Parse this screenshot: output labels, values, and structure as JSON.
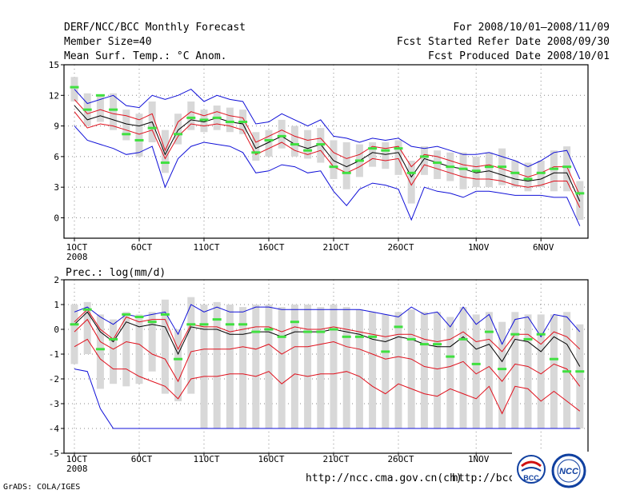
{
  "header": {
    "title": "DERF/NCC/BCC Monthly Forecast",
    "member": "Member Size=40",
    "variable": "Mean Surf. Temp.: °C Anom.",
    "period": "For 2008/10/01—2008/11/09",
    "started": "Fcst Started Refer Date 2008/09/30",
    "produced": "Fcst Produced Date 2008/10/01"
  },
  "footer": {
    "grads": "GrADS: COLA/IGES",
    "url1": "http://ncc.cma.gov.cn(ch)",
    "url2": "http://bcc.c",
    "logo1": "BCC",
    "logo2": "NCC"
  },
  "colors": {
    "mean": "#000000",
    "spread": "#e0101c",
    "extreme": "#1010d8",
    "box": "#d8d8d8",
    "marker": "#40e040"
  },
  "chart_data": [
    {
      "type": "line",
      "title": "Mean Surf. Temp.: °C Anom.",
      "x_tick_labels": [
        "1OCT",
        "6OCT",
        "11OCT",
        "16OCT",
        "21OCT",
        "26OCT",
        "1NOV",
        "6NOV"
      ],
      "x_tick_days": [
        1,
        6,
        11,
        16,
        21,
        26,
        32,
        37
      ],
      "x_sub_label": "2008",
      "ylim": [
        -2,
        15
      ],
      "y_ticks": [
        0,
        3,
        6,
        9,
        12,
        15
      ],
      "x": [
        1,
        2,
        3,
        4,
        5,
        6,
        7,
        8,
        9,
        10,
        11,
        12,
        13,
        14,
        15,
        16,
        17,
        18,
        19,
        20,
        21,
        22,
        23,
        24,
        25,
        26,
        27,
        28,
        29,
        30,
        31,
        32,
        33,
        34,
        35,
        36,
        37,
        38,
        39,
        40
      ],
      "series": [
        {
          "name": "max",
          "color": "#1010d8",
          "values": [
            12.6,
            11.2,
            11.6,
            12.0,
            11.0,
            10.8,
            12.0,
            11.6,
            12.0,
            12.6,
            11.4,
            12.0,
            11.6,
            11.4,
            9.2,
            9.4,
            10.2,
            9.6,
            9.0,
            9.6,
            8.0,
            7.8,
            7.4,
            7.8,
            7.6,
            7.8,
            7.0,
            6.8,
            7.0,
            6.6,
            6.2,
            6.2,
            6.4,
            6.0,
            5.6,
            5.0,
            5.6,
            6.4,
            6.6,
            3.8
          ]
        },
        {
          "name": "upper",
          "color": "#e0101c",
          "values": [
            11.6,
            10.2,
            10.6,
            10.2,
            10.0,
            9.6,
            10.2,
            6.6,
            9.4,
            10.4,
            10.0,
            10.4,
            10.0,
            9.8,
            7.4,
            8.0,
            8.6,
            8.0,
            7.6,
            7.8,
            6.4,
            5.8,
            6.2,
            7.0,
            6.8,
            7.0,
            5.0,
            6.2,
            6.0,
            5.6,
            5.2,
            5.0,
            5.2,
            4.8,
            4.4,
            4.0,
            4.4,
            5.0,
            5.0,
            2.2
          ]
        },
        {
          "name": "mean",
          "color": "#000000",
          "values": [
            11.0,
            9.6,
            10.0,
            9.6,
            9.2,
            9.0,
            9.4,
            6.2,
            8.6,
            9.6,
            9.4,
            9.8,
            9.4,
            9.2,
            6.8,
            7.4,
            8.0,
            7.2,
            6.8,
            7.2,
            5.6,
            5.0,
            5.6,
            6.4,
            6.2,
            6.4,
            4.0,
            5.8,
            5.4,
            5.0,
            4.8,
            4.4,
            4.6,
            4.2,
            3.8,
            3.6,
            3.8,
            4.4,
            4.4,
            1.6
          ]
        },
        {
          "name": "lower",
          "color": "#e0101c",
          "values": [
            10.4,
            8.8,
            9.2,
            9.0,
            8.6,
            8.2,
            8.6,
            5.8,
            8.0,
            9.2,
            9.0,
            9.2,
            9.0,
            8.6,
            6.2,
            6.8,
            7.4,
            6.6,
            6.2,
            6.6,
            5.0,
            4.4,
            5.0,
            5.8,
            5.6,
            5.8,
            3.2,
            5.2,
            4.8,
            4.4,
            4.0,
            3.8,
            3.8,
            3.6,
            3.2,
            3.0,
            3.2,
            3.6,
            3.6,
            1.0
          ]
        },
        {
          "name": "min",
          "color": "#1010d8",
          "values": [
            9.0,
            7.6,
            7.2,
            6.8,
            6.2,
            6.4,
            7.0,
            3.0,
            5.8,
            7.0,
            7.4,
            7.2,
            7.0,
            6.4,
            4.4,
            4.6,
            5.2,
            5.0,
            4.4,
            4.6,
            2.6,
            1.2,
            2.8,
            3.4,
            3.2,
            2.8,
            -0.2,
            3.0,
            2.6,
            2.4,
            2.0,
            2.6,
            2.6,
            2.4,
            2.2,
            2.2,
            2.2,
            2.0,
            2.0,
            -0.8
          ]
        },
        {
          "name": "box_high",
          "color": "#d8d8d8",
          "values": [
            13.8,
            12.2,
            12.0,
            12.2,
            10.6,
            10.2,
            11.4,
            8.6,
            10.2,
            11.4,
            10.6,
            11.0,
            10.8,
            10.6,
            8.4,
            8.6,
            9.6,
            9.0,
            8.6,
            8.8,
            7.6,
            7.4,
            7.2,
            7.4,
            7.4,
            7.6,
            5.6,
            7.0,
            6.6,
            6.4,
            6.4,
            6.0,
            6.4,
            6.8,
            5.6,
            5.4,
            5.6,
            6.6,
            7.0,
            3.6
          ]
        },
        {
          "name": "box_low",
          "color": "#d8d8d8",
          "values": [
            11.4,
            9.0,
            9.4,
            8.6,
            7.6,
            6.0,
            7.4,
            4.4,
            7.2,
            8.6,
            8.4,
            8.6,
            8.4,
            8.2,
            5.6,
            6.0,
            6.8,
            6.0,
            5.8,
            5.4,
            3.8,
            2.8,
            4.0,
            5.0,
            4.8,
            4.2,
            1.4,
            4.2,
            3.8,
            3.6,
            2.8,
            3.0,
            3.0,
            3.2,
            3.0,
            2.6,
            3.0,
            2.6,
            2.6,
            -0.2
          ]
        },
        {
          "name": "observed",
          "color": "#40e040",
          "values": [
            12.8,
            10.6,
            12.0,
            10.6,
            8.2,
            7.6,
            8.8,
            5.4,
            8.2,
            9.8,
            9.6,
            9.8,
            9.4,
            9.4,
            6.4,
            7.6,
            8.0,
            7.2,
            6.6,
            7.2,
            5.0,
            4.4,
            5.6,
            6.8,
            6.6,
            6.8,
            4.4,
            6.0,
            5.4,
            5.0,
            4.8,
            4.6,
            5.0,
            5.0,
            4.4,
            3.8,
            4.4,
            4.8,
            5.0,
            2.4
          ]
        }
      ]
    },
    {
      "type": "line",
      "title": "Prec.: log(mm/d)",
      "x_tick_labels": [
        "1OCT",
        "6OCT",
        "11OCT",
        "16OCT",
        "21OCT",
        "26OCT",
        "1NOV",
        "6NOV"
      ],
      "x_tick_days": [
        1,
        6,
        11,
        16,
        21,
        26,
        32,
        37
      ],
      "x_sub_label": "2008",
      "ylim": [
        -5,
        2
      ],
      "y_ticks": [
        -5,
        -4,
        -3,
        -2,
        -1,
        0,
        1,
        2
      ],
      "x": [
        1,
        2,
        3,
        4,
        5,
        6,
        7,
        8,
        9,
        10,
        11,
        12,
        13,
        14,
        15,
        16,
        17,
        18,
        19,
        20,
        21,
        22,
        23,
        24,
        25,
        26,
        27,
        28,
        29,
        30,
        31,
        32,
        33,
        34,
        35,
        36,
        37,
        38,
        39,
        40
      ],
      "series": [
        {
          "name": "max",
          "color": "#1010d8",
          "values": [
            0.7,
            0.9,
            0.5,
            0.2,
            0.6,
            0.5,
            0.6,
            0.7,
            -0.2,
            1.0,
            0.7,
            0.9,
            0.7,
            0.7,
            0.9,
            0.9,
            0.8,
            0.8,
            0.8,
            0.8,
            0.8,
            0.8,
            0.8,
            0.7,
            0.6,
            0.5,
            0.9,
            0.6,
            0.7,
            0.1,
            0.9,
            0.2,
            0.6,
            -0.6,
            0.4,
            0.5,
            -0.3,
            0.6,
            0.5,
            -0.1
          ]
        },
        {
          "name": "upper",
          "color": "#e0101c",
          "values": [
            0.3,
            0.8,
            0.0,
            -0.4,
            0.5,
            0.3,
            0.4,
            0.4,
            -0.8,
            0.2,
            0.1,
            0.1,
            -0.1,
            0.0,
            0.1,
            0.1,
            -0.1,
            0.1,
            0.0,
            0.0,
            0.1,
            0.0,
            -0.1,
            -0.2,
            -0.3,
            -0.2,
            -0.2,
            -0.4,
            -0.5,
            -0.4,
            -0.1,
            -0.5,
            -0.4,
            -0.9,
            -0.2,
            -0.2,
            -0.6,
            -0.1,
            -0.3,
            -0.8
          ]
        },
        {
          "name": "mean",
          "color": "#000000",
          "values": [
            0.2,
            0.7,
            -0.1,
            -0.5,
            0.3,
            0.1,
            0.2,
            0.1,
            -1.0,
            0.1,
            0.0,
            0.0,
            -0.2,
            -0.2,
            -0.1,
            -0.1,
            -0.3,
            -0.1,
            -0.1,
            -0.1,
            0.0,
            -0.1,
            -0.2,
            -0.4,
            -0.5,
            -0.3,
            -0.4,
            -0.6,
            -0.7,
            -0.7,
            -0.3,
            -0.8,
            -0.6,
            -1.3,
            -0.4,
            -0.5,
            -0.9,
            -0.3,
            -0.6,
            -1.5
          ]
        },
        {
          "name": "lower",
          "color": "#e0101c",
          "values": [
            -0.1,
            0.4,
            -0.5,
            -0.8,
            -0.5,
            -0.6,
            -1.0,
            -1.2,
            -2.1,
            -0.9,
            -0.8,
            -0.8,
            -0.8,
            -0.7,
            -0.8,
            -0.6,
            -1.0,
            -0.7,
            -0.7,
            -0.6,
            -0.5,
            -0.7,
            -0.8,
            -1.0,
            -1.2,
            -1.1,
            -1.2,
            -1.5,
            -1.6,
            -1.5,
            -1.3,
            -1.8,
            -1.5,
            -2.1,
            -1.4,
            -1.5,
            -1.8,
            -1.4,
            -1.6,
            -2.3
          ]
        },
        {
          "name": "spread_min",
          "color": "#e0101c",
          "values": [
            -0.7,
            -0.4,
            -1.2,
            -1.6,
            -1.6,
            -1.9,
            -2.1,
            -2.3,
            -2.8,
            -2.0,
            -1.9,
            -1.9,
            -1.8,
            -1.8,
            -1.9,
            -1.7,
            -2.2,
            -1.8,
            -1.9,
            -1.8,
            -1.8,
            -1.7,
            -1.9,
            -2.3,
            -2.6,
            -2.2,
            -2.4,
            -2.6,
            -2.7,
            -2.4,
            -2.6,
            -2.8,
            -2.3,
            -3.4,
            -2.3,
            -2.4,
            -2.9,
            -2.5,
            -2.9,
            -3.3
          ]
        },
        {
          "name": "min",
          "color": "#1010d8",
          "values": [
            -1.6,
            -1.7,
            -3.2,
            -4.0,
            -4.0,
            -4.0,
            -4.0,
            -4.0,
            -4.0,
            -4.0,
            -4.0,
            -4.0,
            -4.0,
            -4.0,
            -4.0,
            -4.0,
            -4.0,
            -4.0,
            -4.0,
            -4.0,
            -4.0,
            -4.0,
            -4.0,
            -4.0,
            -4.0,
            -4.0,
            -4.0,
            -4.0,
            -4.0,
            -4.0,
            -4.0,
            -4.0,
            -4.0,
            -4.0,
            -4.0,
            -4.0,
            -4.0,
            -4.0,
            -4.0,
            -4.0
          ]
        },
        {
          "name": "box_high",
          "color": "#d8d8d8",
          "values": [
            1.0,
            1.1,
            0.6,
            0.4,
            0.7,
            0.6,
            0.7,
            1.2,
            0.0,
            1.3,
            1.0,
            1.1,
            1.0,
            0.9,
            1.0,
            1.0,
            0.9,
            1.0,
            1.0,
            0.9,
            1.0,
            0.9,
            0.8,
            0.7,
            0.6,
            0.7,
            0.8,
            0.7,
            0.7,
            0.5,
            0.9,
            0.6,
            0.7,
            0.3,
            0.7,
            0.6,
            0.6,
            0.6,
            0.7,
            0.2
          ]
        },
        {
          "name": "box_low",
          "color": "#d8d8d8",
          "values": [
            -1.4,
            -1.0,
            -2.4,
            -2.2,
            -2.3,
            -2.2,
            -1.7,
            -2.6,
            -2.9,
            -2.6,
            -4.0,
            -4.0,
            -4.0,
            -4.0,
            -4.0,
            -4.0,
            -4.0,
            -4.0,
            -4.0,
            -4.0,
            -4.0,
            -4.0,
            -4.0,
            -4.0,
            -4.0,
            -4.0,
            -4.0,
            -4.0,
            -4.0,
            -4.0,
            -4.0,
            -4.0,
            -4.0,
            -4.0,
            -4.0,
            -4.0,
            -4.0,
            -4.0,
            -4.0,
            -4.0
          ]
        },
        {
          "name": "observed",
          "color": "#40e040",
          "values": [
            0.2,
            0.8,
            -0.8,
            -0.4,
            0.6,
            0.5,
            0.3,
            0.6,
            -1.2,
            0.2,
            0.2,
            0.4,
            0.2,
            0.2,
            -0.1,
            0.0,
            -0.3,
            0.3,
            -0.1,
            -0.1,
            0.0,
            -0.3,
            -0.3,
            -0.3,
            -0.9,
            0.1,
            -0.4,
            -0.6,
            -0.6,
            -1.1,
            -0.4,
            -1.4,
            -0.1,
            -1.6,
            -0.2,
            -0.4,
            -0.2,
            -1.2,
            -1.7,
            -1.7
          ]
        }
      ]
    }
  ]
}
